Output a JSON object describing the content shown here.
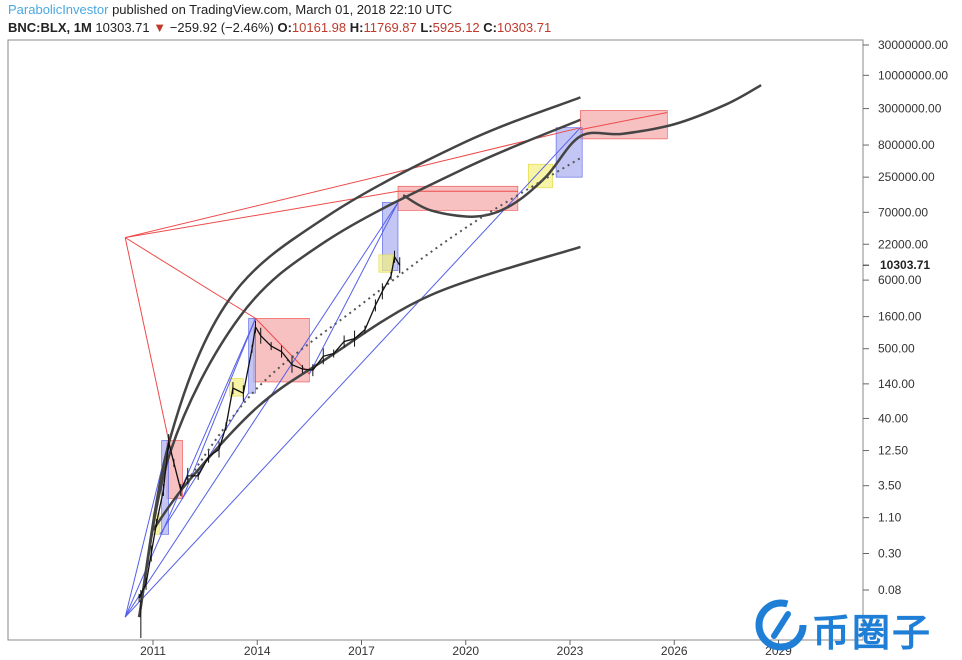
{
  "header": {
    "username": "ParabolicInvestor",
    "published_text": " published on TradingView.com, March 01, 2018 22:10 UTC",
    "symbol": "BNC:BLX, 1M",
    "last": "10303.71",
    "change_arrow": "▼",
    "change": "−259.92 (−2.46%)",
    "o_label": "O:",
    "o_value": "10161.98",
    "h_label": "H:",
    "h_value": "11769.87",
    "l_label": "L:",
    "l_value": "5925.12",
    "c_label": "C:",
    "c_value": "10303.71"
  },
  "chart_data": {
    "type": "line",
    "title": "",
    "xlabel": "",
    "ylabel": "",
    "y_scale": "log",
    "x_ticks": [
      "2011",
      "2014",
      "2017",
      "2020",
      "2023",
      "2026",
      "2029"
    ],
    "x_tick_values": [
      2011,
      2014,
      2017,
      2020,
      2023,
      2026,
      2029
    ],
    "y_ticks": [
      "30000000.00",
      "10000000.00",
      "3000000.00",
      "800000.00",
      "250000.00",
      "70000.00",
      "22000.00",
      "6000.00",
      "1600.00",
      "500.00",
      "140.00",
      "40.00",
      "12.50",
      "3.50",
      "1.10",
      "0.30",
      "0.08"
    ],
    "y_tick_values": [
      30000000,
      10000000,
      3000000,
      800000,
      250000,
      70000,
      22000,
      6000,
      1600,
      500,
      140,
      40,
      12.5,
      3.5,
      1.1,
      0.3,
      0.08
    ],
    "last_price_label": "10303.71",
    "last_price": 10303.71,
    "price_series": [
      {
        "t": 2010.6,
        "v": 0.06
      },
      {
        "t": 2010.8,
        "v": 0.1
      },
      {
        "t": 2010.95,
        "v": 0.3
      },
      {
        "t": 2011.1,
        "v": 0.9
      },
      {
        "t": 2011.3,
        "v": 3
      },
      {
        "t": 2011.45,
        "v": 17
      },
      {
        "t": 2011.6,
        "v": 8
      },
      {
        "t": 2011.8,
        "v": 3
      },
      {
        "t": 2012.0,
        "v": 5
      },
      {
        "t": 2012.3,
        "v": 5
      },
      {
        "t": 2012.6,
        "v": 10
      },
      {
        "t": 2012.9,
        "v": 13
      },
      {
        "t": 2013.1,
        "v": 30
      },
      {
        "t": 2013.3,
        "v": 120
      },
      {
        "t": 2013.6,
        "v": 100
      },
      {
        "t": 2013.85,
        "v": 500
      },
      {
        "t": 2013.95,
        "v": 1100
      },
      {
        "t": 2014.1,
        "v": 800
      },
      {
        "t": 2014.4,
        "v": 550
      },
      {
        "t": 2014.7,
        "v": 450
      },
      {
        "t": 2015.0,
        "v": 280
      },
      {
        "t": 2015.3,
        "v": 240
      },
      {
        "t": 2015.6,
        "v": 230
      },
      {
        "t": 2015.9,
        "v": 380
      },
      {
        "t": 2016.2,
        "v": 420
      },
      {
        "t": 2016.5,
        "v": 650
      },
      {
        "t": 2016.8,
        "v": 720
      },
      {
        "t": 2017.1,
        "v": 1000
      },
      {
        "t": 2017.4,
        "v": 2400
      },
      {
        "t": 2017.6,
        "v": 4000
      },
      {
        "t": 2017.85,
        "v": 7000
      },
      {
        "t": 2017.95,
        "v": 14000
      },
      {
        "t": 2018.1,
        "v": 10303.71
      }
    ],
    "curves": [
      {
        "style": "upper-outer",
        "points": [
          {
            "t": 2010.6,
            "v": 0.03
          },
          {
            "t": 2011.5,
            "v": 20
          },
          {
            "t": 2013.2,
            "v": 3000
          },
          {
            "t": 2016,
            "v": 60000
          },
          {
            "t": 2020,
            "v": 900000
          },
          {
            "t": 2023.3,
            "v": 4500000
          }
        ]
      },
      {
        "style": "upper-inner",
        "points": [
          {
            "t": 2010.6,
            "v": 0.03
          },
          {
            "t": 2011.5,
            "v": 12
          },
          {
            "t": 2013.5,
            "v": 1600
          },
          {
            "t": 2016,
            "v": 25000
          },
          {
            "t": 2020,
            "v": 350000
          },
          {
            "t": 2023.3,
            "v": 2000000
          }
        ]
      },
      {
        "style": "lower",
        "points": [
          {
            "t": 2011.0,
            "v": 0.7
          },
          {
            "t": 2012,
            "v": 4
          },
          {
            "t": 2014,
            "v": 60
          },
          {
            "t": 2016,
            "v": 350
          },
          {
            "t": 2019,
            "v": 3500
          },
          {
            "t": 2023.3,
            "v": 20000
          }
        ]
      },
      {
        "style": "projection",
        "points": [
          {
            "t": 2018.2,
            "v": 130000
          },
          {
            "t": 2019,
            "v": 75000
          },
          {
            "t": 2020.3,
            "v": 60000
          },
          {
            "t": 2021.3,
            "v": 90000
          },
          {
            "t": 2022.3,
            "v": 250000
          },
          {
            "t": 2023.3,
            "v": 1100000
          },
          {
            "t": 2024.5,
            "v": 1200000
          },
          {
            "t": 2026,
            "v": 1700000
          },
          {
            "t": 2027.5,
            "v": 3500000
          },
          {
            "t": 2028.5,
            "v": 7000000
          }
        ]
      },
      {
        "style": "dotted",
        "points": [
          {
            "t": 2011.8,
            "v": 3
          },
          {
            "t": 2014,
            "v": 120
          },
          {
            "t": 2017,
            "v": 2500
          },
          {
            "t": 2020,
            "v": 40000
          },
          {
            "t": 2023.3,
            "v": 500000
          }
        ]
      }
    ],
    "boxes": [
      {
        "color": "red",
        "t1": 2011.4,
        "t2": 2011.85,
        "v1": 2.2,
        "v2": 18
      },
      {
        "color": "blue",
        "t1": 2011.25,
        "t2": 2011.45,
        "v1": 0.6,
        "v2": 18
      },
      {
        "color": "yellow",
        "t1": 2011.0,
        "t2": 2011.2,
        "v1": 0.6,
        "v2": 1.3
      },
      {
        "color": "red",
        "t1": 2013.9,
        "t2": 2015.5,
        "v1": 150,
        "v2": 1500
      },
      {
        "color": "blue",
        "t1": 2013.75,
        "t2": 2013.95,
        "v1": 100,
        "v2": 1500
      },
      {
        "color": "yellow",
        "t1": 2013.2,
        "t2": 2013.6,
        "v1": 90,
        "v2": 170
      },
      {
        "color": "red",
        "t1": 2018.05,
        "t2": 2021.5,
        "v1": 75000,
        "v2": 180000
      },
      {
        "color": "blue",
        "t1": 2017.6,
        "t2": 2018.05,
        "v1": 8500,
        "v2": 100000
      },
      {
        "color": "yellow",
        "t1": 2017.5,
        "t2": 2017.9,
        "v1": 8000,
        "v2": 15000
      },
      {
        "color": "red",
        "t1": 2023.3,
        "t2": 2025.8,
        "v1": 1000000,
        "v2": 2800000
      },
      {
        "color": "blue",
        "t1": 2022.6,
        "t2": 2023.35,
        "v1": 250000,
        "v2": 1500000
      },
      {
        "color": "yellow",
        "t1": 2021.8,
        "t2": 2022.5,
        "v1": 170000,
        "v2": 400000
      }
    ],
    "fan_lines": [
      {
        "color": "red",
        "from": {
          "t": 2010.2,
          "v": 28000
        },
        "to": {
          "t": 2011.45,
          "v": 18
        }
      },
      {
        "color": "red",
        "from": {
          "t": 2010.2,
          "v": 28000
        },
        "to": {
          "t": 2013.95,
          "v": 1500
        }
      },
      {
        "color": "red",
        "from": {
          "t": 2010.2,
          "v": 28000
        },
        "to": {
          "t": 2018.05,
          "v": 150000
        }
      },
      {
        "color": "red",
        "from": {
          "t": 2010.2,
          "v": 28000
        },
        "to": {
          "t": 2023.3,
          "v": 1500000
        }
      },
      {
        "color": "red",
        "from": {
          "t": 2011.45,
          "v": 18
        },
        "to": {
          "t": 2011.85,
          "v": 2.2
        }
      },
      {
        "color": "red",
        "from": {
          "t": 2013.95,
          "v": 1500
        },
        "to": {
          "t": 2015.5,
          "v": 200
        }
      },
      {
        "color": "red",
        "from": {
          "t": 2018.05,
          "v": 150000
        },
        "to": {
          "t": 2021.5,
          "v": 150000
        }
      },
      {
        "color": "red",
        "from": {
          "t": 2023.3,
          "v": 1400000
        },
        "to": {
          "t": 2025.8,
          "v": 2600000
        }
      },
      {
        "color": "blue",
        "from": {
          "t": 2010.2,
          "v": 0.03
        },
        "to": {
          "t": 2011.45,
          "v": 18
        }
      },
      {
        "color": "blue",
        "from": {
          "t": 2010.2,
          "v": 0.03
        },
        "to": {
          "t": 2013.95,
          "v": 1500
        }
      },
      {
        "color": "blue",
        "from": {
          "t": 2010.2,
          "v": 0.03
        },
        "to": {
          "t": 2018.05,
          "v": 100000
        }
      },
      {
        "color": "blue",
        "from": {
          "t": 2010.2,
          "v": 0.03
        },
        "to": {
          "t": 2023.3,
          "v": 1500000
        }
      },
      {
        "color": "blue",
        "from": {
          "t": 2011.85,
          "v": 2.2
        },
        "to": {
          "t": 2013.95,
          "v": 1500
        }
      },
      {
        "color": "blue",
        "from": {
          "t": 2015.5,
          "v": 200
        },
        "to": {
          "t": 2018.05,
          "v": 100000
        }
      },
      {
        "color": "blue",
        "from": {
          "t": 2011.2,
          "v": 0.6
        },
        "to": {
          "t": 2013.75,
          "v": 100
        }
      }
    ],
    "grid": false,
    "legend": "none",
    "colors": {
      "price": "#111111",
      "curve": "#444444",
      "red_fill": "#f4a7a7",
      "blue_fill": "#a9aef0",
      "yellow_fill": "#f4f080",
      "red_line": "#ee4a4a",
      "blue_line": "#5560e8",
      "axis_text": "#333333"
    }
  },
  "watermark": {
    "text": "币圈子",
    "color": "#1f7fd6"
  }
}
